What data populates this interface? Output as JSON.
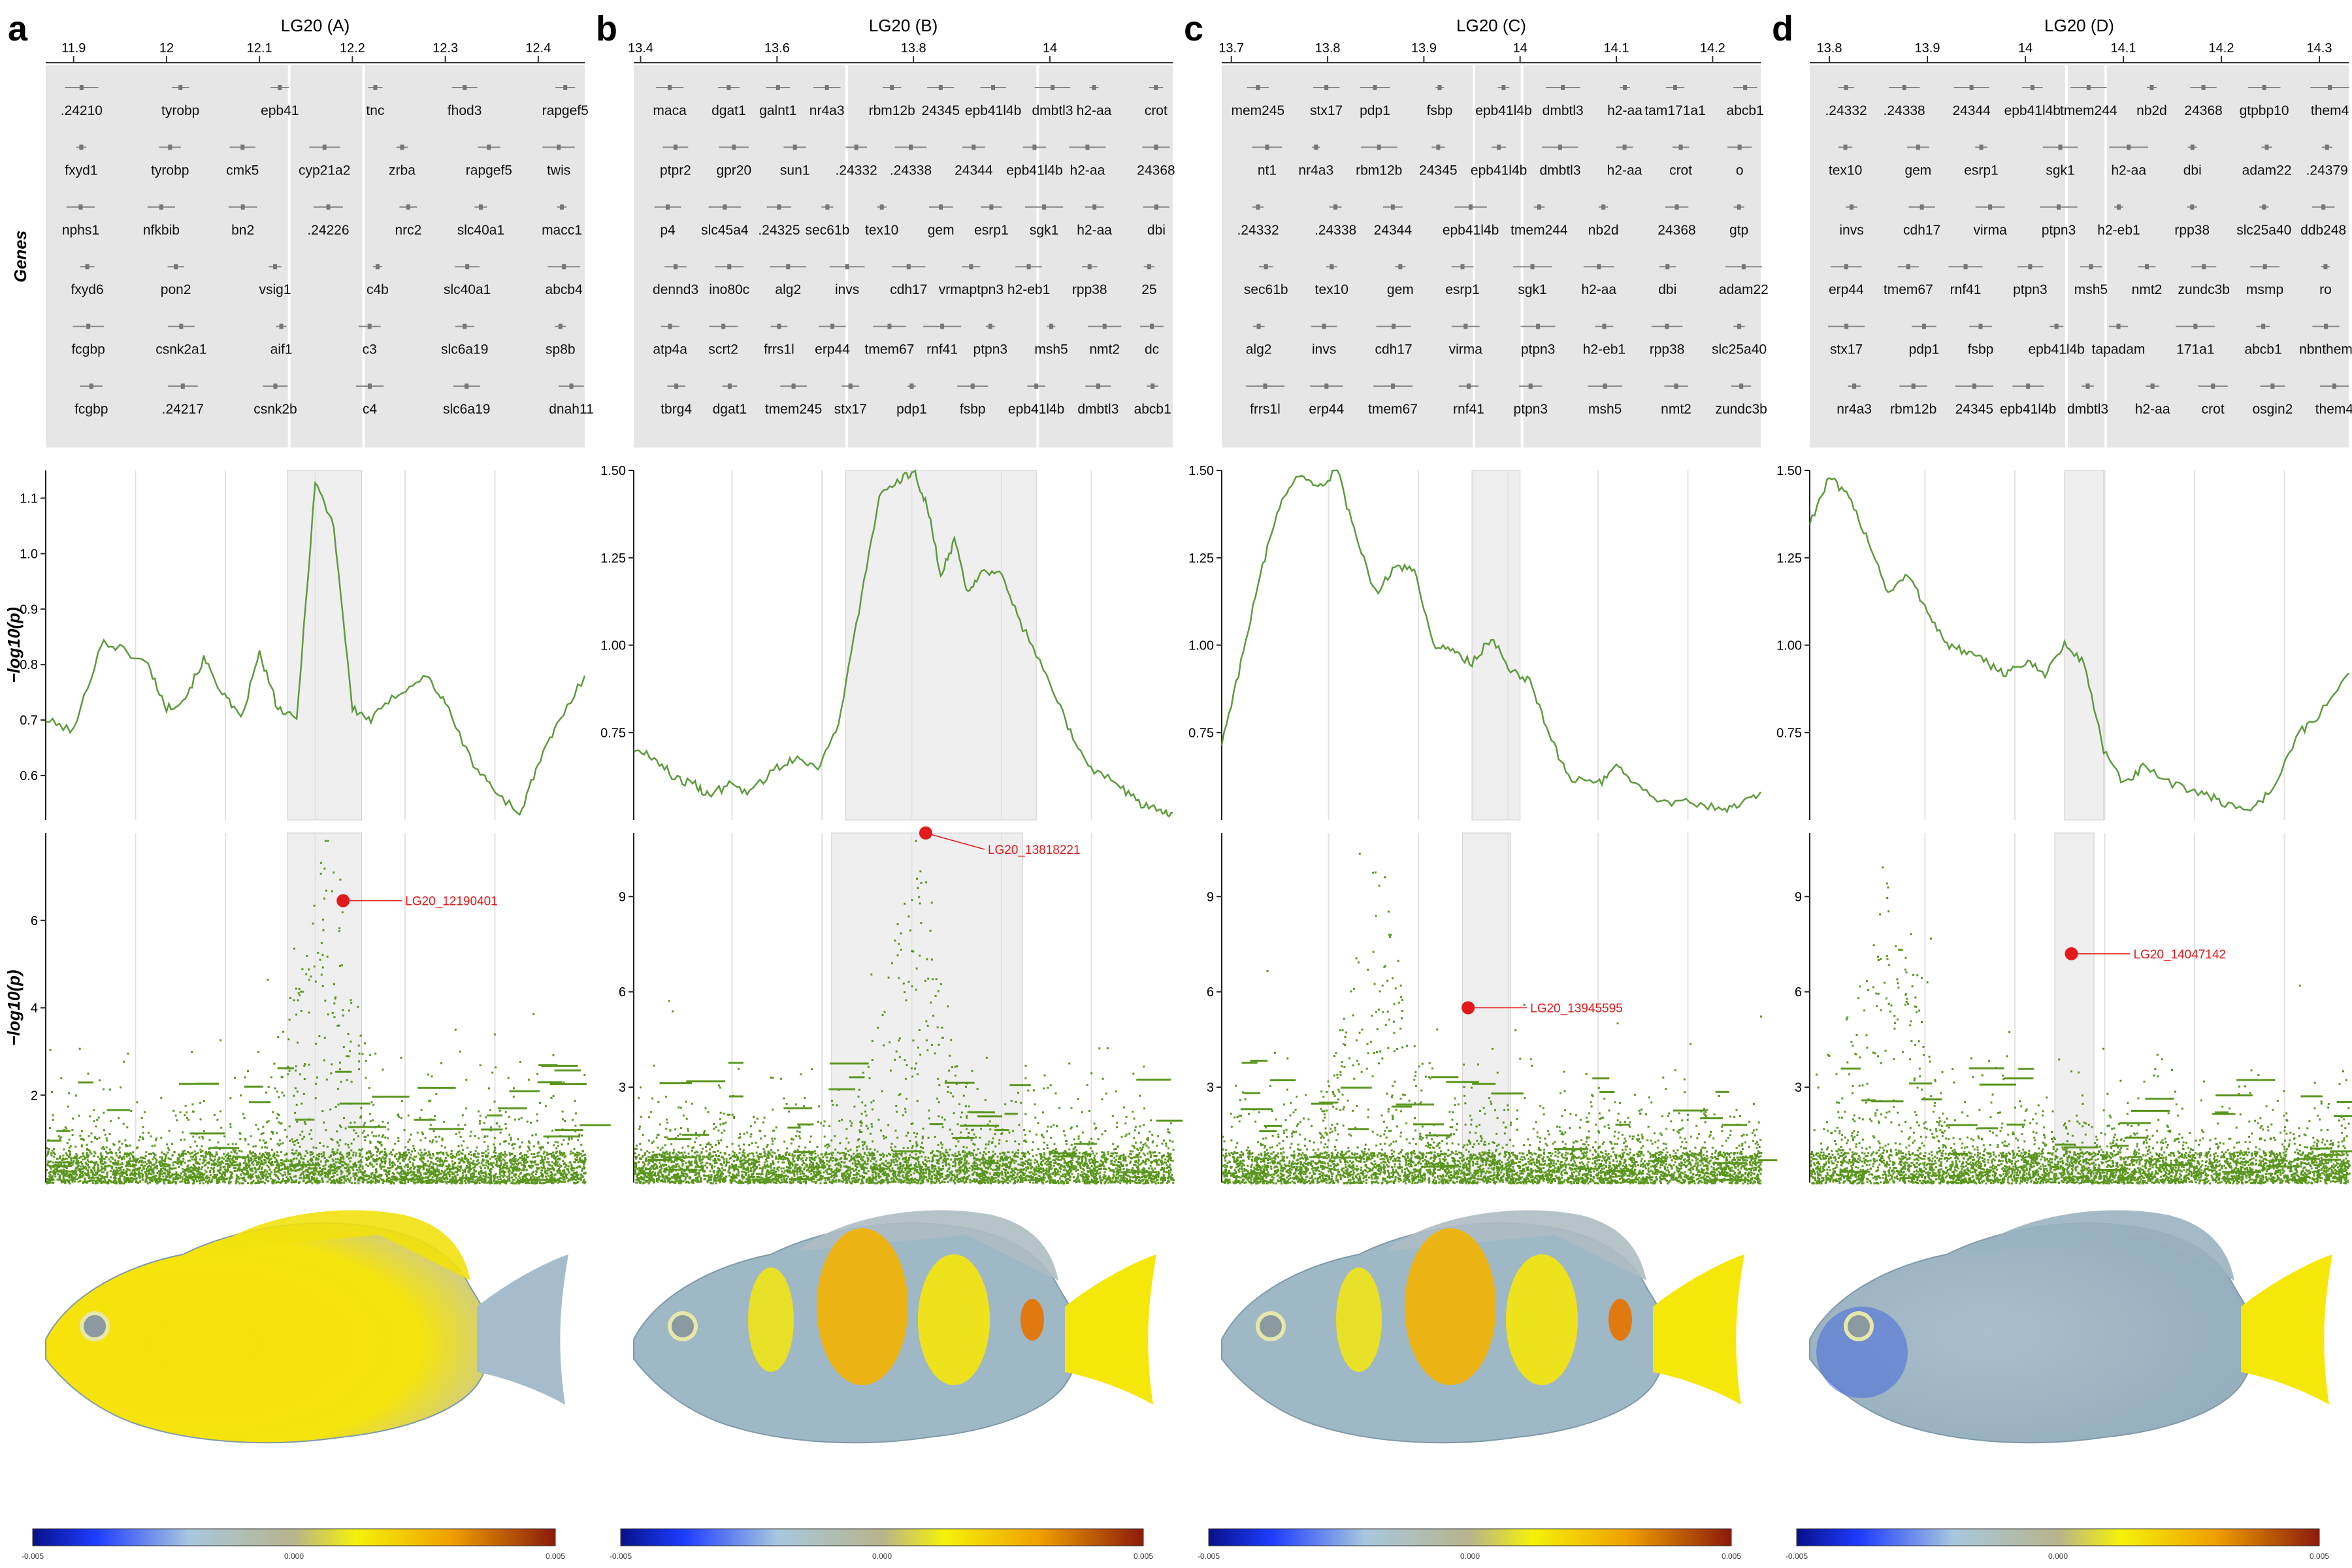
{
  "figure": {
    "shared": {
      "genes_label": "Genes",
      "ylabel_html": "−log10(p)",
      "colorbar_ticks": [
        "-0.005",
        "0.000",
        "0.005"
      ],
      "colors": {
        "line": "#5e9a3c",
        "point": "#5a961e",
        "lead": "#e31a1c",
        "gene_panel_bg": "#e6e6e6",
        "window_shade": "#efefef",
        "gene_text": "#111111",
        "fish_yellow": "#f6e70a",
        "fish_orange": "#f3b300",
        "fish_blue": "#9fb8c6",
        "fish_deep_blue": "#4f6fdc"
      }
    },
    "panels": [
      {
        "letter": "a",
        "title": "LG20 (A)",
        "chart_data": {
          "type": "line+scatter",
          "x_ticks": [
            "11.9",
            "12",
            "12.1",
            "12.2",
            "12.3",
            "12.4"
          ],
          "xlim": [
            11.87,
            12.45
          ],
          "line": {
            "ylabel": "−log10(p)",
            "yticks": [
              "0.6",
              "0.7",
              "0.8",
              "0.9",
              "1.0",
              "1.1"
            ],
            "ylim": [
              0.52,
              1.15
            ],
            "x": [
              11.87,
              11.9,
              11.93,
              11.95,
              11.98,
              12.0,
              12.02,
              12.04,
              12.06,
              12.08,
              12.1,
              12.12,
              12.14,
              12.16,
              12.18,
              12.2,
              12.22,
              12.25,
              12.28,
              12.3,
              12.33,
              12.35,
              12.38,
              12.4,
              12.42,
              12.45
            ],
            "y": [
              0.7,
              0.68,
              0.84,
              0.83,
              0.8,
              0.72,
              0.74,
              0.81,
              0.75,
              0.7,
              0.82,
              0.72,
              0.7,
              1.13,
              1.05,
              0.72,
              0.7,
              0.75,
              0.78,
              0.73,
              0.62,
              0.58,
              0.53,
              0.62,
              0.69,
              0.78
            ],
            "shade": [
              12.13,
              12.21
            ]
          },
          "scatter": {
            "ylabel": "−log10(p)",
            "yticks": [
              "2",
              "4",
              "6"
            ],
            "ylim": [
              0,
              8
            ],
            "lead": {
              "label": "LG20_12190401",
              "x": 12.19,
              "y": 6.45
            },
            "shade": [
              12.13,
              12.21
            ],
            "peak": 12.17,
            "peak_height": 7.5
          },
          "gene_rows": [
            [
              ".24210",
              "tyrobp",
              "epb41",
              "tnc",
              "fhod3",
              "rapgef5"
            ],
            [
              "fxyd1",
              "tyrobp",
              "cmk5",
              "cyp21a2",
              "zrba",
              "rapgef5",
              "twis"
            ],
            [
              "nphs1",
              "nfkbib",
              "bn2",
              ".24226",
              "nrc2",
              "slc40a1",
              "macc1"
            ],
            [
              "fxyd6",
              "pon2",
              "vsig1",
              "c4b",
              "slc40a1",
              "abcb4"
            ],
            [
              "fcgbp",
              "csnk2a1",
              "aif1",
              "c3",
              "slc6a19",
              "sp8b"
            ],
            [
              "fcgbp",
              ".24217",
              "csnk2b",
              "c4",
              "slc6a19",
              "dnah11"
            ]
          ]
        },
        "fish": "a"
      },
      {
        "letter": "b",
        "title": "LG20 (B)",
        "chart_data": {
          "type": "line+scatter",
          "x_ticks": [
            "13.4",
            "13.6",
            "13.8",
            "14"
          ],
          "xlim": [
            13.39,
            14.18
          ],
          "line": {
            "ylabel": "−log10(p)",
            "yticks": [
              "0.75",
              "1.00",
              "1.25",
              "1.50"
            ],
            "ylim": [
              0.5,
              1.5
            ],
            "x": [
              13.39,
              13.42,
              13.45,
              13.48,
              13.5,
              13.53,
              13.56,
              13.6,
              13.63,
              13.66,
              13.69,
              13.72,
              13.75,
              13.78,
              13.8,
              13.82,
              13.84,
              13.86,
              13.88,
              13.9,
              13.93,
              13.96,
              14.0,
              14.03,
              14.06,
              14.1,
              14.13,
              14.16,
              14.18
            ],
            "y": [
              0.7,
              0.68,
              0.62,
              0.6,
              0.57,
              0.6,
              0.58,
              0.65,
              0.68,
              0.65,
              0.77,
              1.1,
              1.42,
              1.47,
              1.5,
              1.4,
              1.2,
              1.3,
              1.15,
              1.22,
              1.2,
              1.05,
              0.9,
              0.75,
              0.65,
              0.6,
              0.55,
              0.53,
              0.52
            ],
            "shade": [
              13.7,
              13.98
            ]
          },
          "scatter": {
            "ylabel": "−log10(p)",
            "yticks": [
              "3",
              "6",
              "9"
            ],
            "ylim": [
              0,
              11
            ],
            "lead": {
              "label": "LG20_13818221",
              "x": 13.818,
              "y": 11.0
            },
            "shade": [
              13.68,
              13.96
            ],
            "peak": 13.8,
            "peak_height": 10.5
          },
          "gene_rows": [
            [
              "macа",
              "dgat1",
              "galnt1",
              "nr4a3",
              "rbm12b",
              "24345",
              "epb41l4b",
              "dmbtl3",
              "h2-aa",
              "crot"
            ],
            [
              "ptpr2",
              "gpr20",
              "sun1",
              ".24332",
              ".24338",
              "24344",
              "epb41l4b",
              "h2-aa",
              "24368"
            ],
            [
              "p4",
              "slc45a4",
              ".24325",
              "sec61b",
              "tex10",
              "gem",
              "esrp1",
              "sgk1",
              "h2-aa",
              "dbi"
            ],
            [
              "dennd3",
              "ino80c",
              "alg2",
              "invs",
              "cdh17",
              "vrmaptpn3",
              "h2-eb1",
              "rpp38",
              "25"
            ],
            [
              "atp4a",
              "scrt2",
              "frrs1l",
              "erp44",
              "tmem67",
              "rnf41",
              "ptpn3",
              "msh5",
              "nmt2",
              "dc"
            ],
            [
              "tbrg4",
              "dgat1",
              "tmem245",
              "stx17",
              "pdp1",
              "fsbp",
              "epb41l4b",
              "dmbtl3",
              "abcb1"
            ]
          ]
        },
        "fish": "b"
      },
      {
        "letter": "c",
        "title": "LG20 (C)",
        "chart_data": {
          "type": "line+scatter",
          "x_ticks": [
            "13.7",
            "13.8",
            "13.9",
            "14",
            "14.1",
            "14.2"
          ],
          "xlim": [
            13.69,
            14.25
          ],
          "line": {
            "ylabel": "−log10(p)",
            "yticks": [
              "0.75",
              "1.00",
              "1.25",
              "1.50"
            ],
            "ylim": [
              0.5,
              1.5
            ],
            "x": [
              13.69,
              13.71,
              13.73,
              13.75,
              13.77,
              13.79,
              13.81,
              13.83,
              13.85,
              13.87,
              13.89,
              13.91,
              13.93,
              13.95,
              13.97,
              13.99,
              14.01,
              14.03,
              14.05,
              14.08,
              14.1,
              14.12,
              14.15,
              14.18,
              14.21,
              14.23,
              14.25
            ],
            "y": [
              0.72,
              0.95,
              1.2,
              1.4,
              1.48,
              1.45,
              1.5,
              1.3,
              1.15,
              1.22,
              1.22,
              1.0,
              0.98,
              0.95,
              1.02,
              0.93,
              0.9,
              0.75,
              0.62,
              0.6,
              0.65,
              0.6,
              0.55,
              0.55,
              0.53,
              0.55,
              0.58
            ],
            "shade": [
              13.95,
              14.0
            ]
          },
          "scatter": {
            "ylabel": "−log10(p)",
            "yticks": [
              "3",
              "6",
              "9"
            ],
            "ylim": [
              0,
              11
            ],
            "lead": {
              "label": "LG20_13945595",
              "x": 13.946,
              "y": 5.5
            },
            "shade": [
              13.94,
              13.99
            ],
            "peak": 13.85,
            "peak_height": 9.8
          },
          "gene_rows": [
            [
              "mem245",
              "stx17",
              "pdp1",
              "fsbp",
              "epb41l4b",
              "dmbtl3",
              "h2-aa",
              "tam171a1",
              "abcb1"
            ],
            [
              "nt1",
              "nr4a3",
              "rbm12b",
              "24345",
              "epb41l4b",
              "dmbtl3",
              "h2-aa",
              "crot",
              "o"
            ],
            [
              ".24332",
              ".24338",
              "24344",
              "epb41l4b",
              "tmem244",
              "nb2d",
              "24368",
              "gtp"
            ],
            [
              "sec61b",
              "tex10",
              "gem",
              "esrp1",
              "sgk1",
              "h2-aa",
              "dbi",
              "adam22"
            ],
            [
              "alg2",
              "invs",
              "cdh17",
              "virma",
              "ptpn3",
              "h2-eb1",
              "rpp38",
              "slc25a40"
            ],
            [
              "frrs1l",
              "erp44",
              "tmem67",
              "rnf41",
              "ptpn3",
              "msh5",
              "nmt2",
              "zundc3b"
            ]
          ]
        },
        "fish": "c"
      },
      {
        "letter": "d",
        "title": "LG20 (D)",
        "chart_data": {
          "type": "line+scatter",
          "x_ticks": [
            "13.8",
            "13.9",
            "14",
            "14.1",
            "14.2",
            "14.3"
          ],
          "xlim": [
            13.78,
            14.33
          ],
          "line": {
            "ylabel": "−log10(p)",
            "yticks": [
              "0.75",
              "1.00",
              "1.25",
              "1.50"
            ],
            "ylim": [
              0.5,
              1.5
            ],
            "x": [
              13.78,
              13.8,
              13.82,
              13.84,
              13.86,
              13.88,
              13.9,
              13.92,
              13.94,
              13.96,
              13.98,
              14.0,
              14.02,
              14.04,
              14.06,
              14.08,
              14.1,
              14.12,
              14.15,
              14.18,
              14.2,
              14.23,
              14.25,
              14.28,
              14.3,
              14.33
            ],
            "y": [
              1.35,
              1.48,
              1.42,
              1.3,
              1.15,
              1.2,
              1.1,
              1.0,
              0.98,
              0.95,
              0.92,
              0.95,
              0.92,
              1.0,
              0.95,
              0.7,
              0.6,
              0.65,
              0.6,
              0.58,
              0.55,
              0.53,
              0.58,
              0.75,
              0.8,
              0.92
            ],
            "shade": [
              14.04,
              14.08
            ]
          },
          "scatter": {
            "ylabel": "−log10(p)",
            "yticks": [
              "3",
              "6",
              "9"
            ],
            "ylim": [
              0,
              11
            ],
            "lead": {
              "label": "LG20_14047142",
              "x": 14.047,
              "y": 7.2
            },
            "shade": [
              14.03,
              14.07
            ],
            "peak": 13.86,
            "peak_height": 9.5
          },
          "gene_rows": [
            [
              ".24332",
              ".24338",
              "24344",
              "epb41l4b",
              "tmem244",
              "nb2d",
              "24368",
              "gtpbp10",
              "them4"
            ],
            [
              "tex10",
              "gem",
              "esrp1",
              "sgk1",
              "h2-aa",
              "dbi",
              "adam22",
              ".24379"
            ],
            [
              "invs",
              "cdh17",
              "virma",
              "ptpn3",
              "h2-eb1",
              "rpp38",
              "slc25a40",
              "ddb248"
            ],
            [
              "erp44",
              "tmem67",
              "rnf41",
              "ptpn3",
              "msh5",
              "nmt2",
              "zundc3b",
              "msmp",
              "ro"
            ],
            [
              "stx17",
              "pdp1",
              "fsbp",
              "epb41l4b",
              "tapadam",
              "171a1",
              "abcb1",
              "nbnthem"
            ],
            [
              "nr4a3",
              "rbm12b",
              "24345",
              "epb41l4b",
              "dmbtl3",
              "h2-aa",
              "crot",
              "osgin2",
              "them4"
            ]
          ]
        },
        "fish": "d"
      }
    ]
  }
}
